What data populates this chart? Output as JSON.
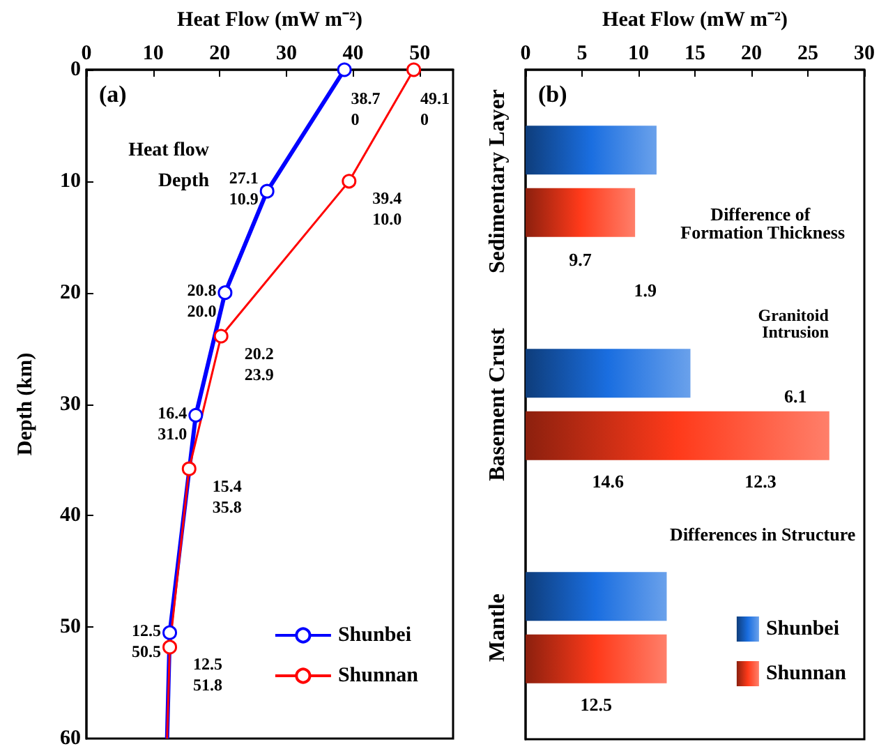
{
  "chart_data": [
    {
      "type": "line",
      "title": "(a)",
      "xlabel": "Heat Flow (mW m⁻²)",
      "ylabel": "Depth (km)",
      "xlim": [
        0,
        55
      ],
      "xticks": [
        0,
        10,
        20,
        30,
        40,
        50
      ],
      "ylim": [
        60,
        0
      ],
      "yticks": [
        0,
        10,
        20,
        30,
        40,
        50,
        60
      ],
      "marker": "circle",
      "line_style": "solid",
      "legend": "bottom right",
      "series": [
        {
          "name": "Shunbei",
          "color": "#0000ff",
          "x": [
            38.7,
            27.1,
            20.8,
            16.4,
            12.5,
            12.1
          ],
          "values": [
            0,
            10.9,
            20.0,
            31.0,
            50.5,
            60
          ],
          "value_labels": [
            "38.7\n0",
            "27.1\n10.9",
            "20.8\n20.0",
            "16.4\n31.0",
            "12.5\n50.5",
            null
          ]
        },
        {
          "name": "Shunnan",
          "color": "#ff0000",
          "x": [
            49.1,
            39.4,
            20.2,
            15.4,
            12.5,
            12.1
          ],
          "values": [
            0,
            10.0,
            23.9,
            35.8,
            51.8,
            60
          ],
          "value_labels": [
            "49.1\n0",
            "39.4\n10.0",
            "20.2\n23.9",
            "15.4\n35.8",
            "12.5\n51.8",
            null
          ]
        }
      ],
      "annotations": [
        "Heat flow",
        "Depth"
      ]
    },
    {
      "type": "bar",
      "orientation": "horizontal",
      "title": "(b)",
      "xlabel": "Heat Flow (mW m⁻²)",
      "categories": [
        "Sedimentary Layer",
        "Basement Crust",
        "Mantle"
      ],
      "xlim": [
        0,
        30
      ],
      "xticks": [
        0,
        5,
        10,
        15,
        20,
        25,
        30
      ],
      "legend": "bottom right",
      "series": [
        {
          "name": "Shunbei",
          "color": "#1a6ee0",
          "values": [
            11.6,
            14.6,
            12.5
          ]
        },
        {
          "name": "Shunnan",
          "color": "#ff3a1a",
          "values": [
            9.7,
            26.9,
            12.5
          ]
        }
      ],
      "annotations": [
        "Difference of Formation Thickness",
        "9.7",
        "1.9",
        "Granitoid Intrusion",
        "6.1",
        "14.6",
        "12.3",
        "Differences in Structure",
        "12.5"
      ]
    }
  ]
}
